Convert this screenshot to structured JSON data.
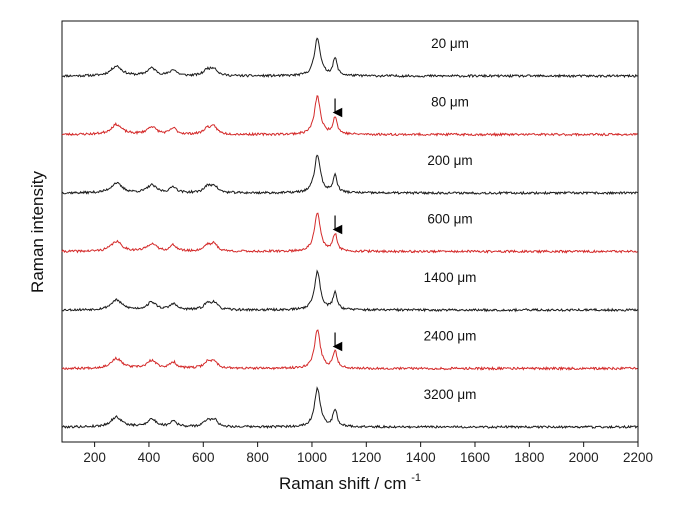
{
  "chart_data": {
    "type": "line",
    "title": "",
    "xlabel": "Raman shift / cm",
    "xlabel_superscript": "-1",
    "ylabel": "Raman intensity",
    "xlim": [
      80,
      2200
    ],
    "xticks": [
      200,
      400,
      600,
      800,
      1000,
      1200,
      1400,
      1600,
      1800,
      2000,
      2200
    ],
    "grid": false,
    "y_units": "relative intensity, 0 = spectrum baseline, 1 = main peak height",
    "peaks": [
      {
        "center": 280,
        "height": 0.26,
        "width": 24
      },
      {
        "center": 410,
        "height": 0.2,
        "width": 20
      },
      {
        "center": 490,
        "height": 0.16,
        "width": 14
      },
      {
        "center": 615,
        "height": 0.16,
        "width": 16
      },
      {
        "center": 640,
        "height": 0.18,
        "width": 14
      },
      {
        "center": 1020,
        "height": 1.0,
        "width": 13
      },
      {
        "center": 1085,
        "height": 0.45,
        "width": 9
      }
    ],
    "series": [
      {
        "name": "20 μm",
        "color": "#1a1a1a",
        "arrow_at": null,
        "noise_seed": 11
      },
      {
        "name": "80 μm",
        "color": "#d42a2a",
        "arrow_at": 1085,
        "noise_seed": 23
      },
      {
        "name": "200 μm",
        "color": "#1a1a1a",
        "arrow_at": null,
        "noise_seed": 37
      },
      {
        "name": "600 μm",
        "color": "#d42a2a",
        "arrow_at": 1085,
        "noise_seed": 41
      },
      {
        "name": "1400 μm",
        "color": "#1a1a1a",
        "arrow_at": null,
        "noise_seed": 53
      },
      {
        "name": "2400 μm",
        "color": "#d42a2a",
        "arrow_at": 1085,
        "noise_seed": 67
      },
      {
        "name": "3200 μm",
        "color": "#1a1a1a",
        "arrow_at": null,
        "noise_seed": 79
      }
    ],
    "annotations": [
      {
        "type": "arrow",
        "at_cm": 1085,
        "series": [
          "80 μm",
          "600 μm",
          "2400 μm"
        ]
      }
    ]
  }
}
